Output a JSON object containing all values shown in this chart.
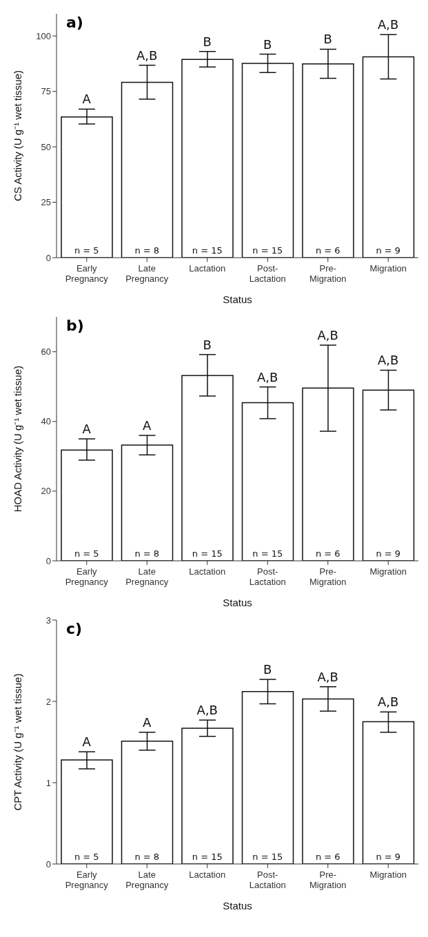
{
  "chart_data": [
    {
      "type": "bar",
      "title": "a)",
      "xlabel": "Status",
      "ylabel": "CS Activity (U g⁻¹ wet tissue)",
      "categories": [
        "Early Pregnancy",
        "Late Pregnancy",
        "Lactation",
        "Post-Lactation",
        "Pre-Migration",
        "Migration"
      ],
      "color": "#ffffff",
      "values": [
        63.5,
        79.1,
        89.4,
        87.6,
        87.4,
        90.6
      ],
      "errors": [
        [
          60.3,
          67
        ],
        [
          71.5,
          86.8
        ],
        [
          86,
          93
        ],
        [
          83.5,
          91.8
        ],
        [
          80.9,
          94
        ],
        [
          80.6,
          100.6
        ]
      ],
      "ylim": [
        0,
        110
      ],
      "yticks": [
        0,
        25,
        50,
        75,
        100
      ],
      "grid": false,
      "legend": false,
      "annotations": [
        {
          "text": "A",
          "x": "Early Pregnancy",
          "y": 67
        },
        {
          "text": "A,B",
          "x": "Late Pregnancy",
          "y": 86.8
        },
        {
          "text": "B",
          "x": "Lactation",
          "y": 93
        },
        {
          "text": "B",
          "x": "Post-Lactation",
          "y": 91.8
        },
        {
          "text": "B",
          "x": "Pre-Migration",
          "y": 94
        },
        {
          "text": "A,B",
          "x": "Migration",
          "y": 100.6
        },
        {
          "text": "n = 5",
          "x": "Early Pregnancy",
          "y": 0
        },
        {
          "text": "n = 8",
          "x": "Late Pregnancy",
          "y": 0
        },
        {
          "text": "n = 15",
          "x": "Lactation",
          "y": 0
        },
        {
          "text": "n = 15",
          "x": "Post-Lactation",
          "y": 0
        },
        {
          "text": "n = 6",
          "x": "Pre-Migration",
          "y": 0
        },
        {
          "text": "n = 9",
          "x": "Migration",
          "y": 0
        }
      ]
    },
    {
      "type": "bar",
      "title": "b)",
      "xlabel": "Status",
      "ylabel": "HOAD Activity (U g⁻¹ wet tissue)",
      "categories": [
        "Early Pregnancy",
        "Late Pregnancy",
        "Lactation",
        "Post-Lactation",
        "Pre-Migration",
        "Migration"
      ],
      "color": "#ffffff",
      "values": [
        31.8,
        33.2,
        53.2,
        45.4,
        49.6,
        49
      ],
      "errors": [
        [
          28.9,
          35
        ],
        [
          30.4,
          36
        ],
        [
          47.3,
          59.2
        ],
        [
          40.8,
          49.9
        ],
        [
          37.2,
          61.9
        ],
        [
          43.3,
          54.7
        ]
      ],
      "ylim": [
        0,
        70
      ],
      "yticks": [
        0,
        20,
        40,
        60
      ],
      "grid": false,
      "legend": false,
      "annotations": [
        {
          "text": "A",
          "x": "Early Pregnancy",
          "y": 35
        },
        {
          "text": "A",
          "x": "Late Pregnancy",
          "y": 36
        },
        {
          "text": "B",
          "x": "Lactation",
          "y": 59.2
        },
        {
          "text": "A,B",
          "x": "Post-Lactation",
          "y": 49.9
        },
        {
          "text": "A,B",
          "x": "Pre-Migration",
          "y": 61.9
        },
        {
          "text": "A,B",
          "x": "Migration",
          "y": 54.7
        },
        {
          "text": "n = 5",
          "x": "Early Pregnancy",
          "y": 0
        },
        {
          "text": "n = 8",
          "x": "Late Pregnancy",
          "y": 0
        },
        {
          "text": "n = 15",
          "x": "Lactation",
          "y": 0
        },
        {
          "text": "n = 15",
          "x": "Post-Lactation",
          "y": 0
        },
        {
          "text": "n = 6",
          "x": "Pre-Migration",
          "y": 0
        },
        {
          "text": "n = 9",
          "x": "Migration",
          "y": 0
        }
      ]
    },
    {
      "type": "bar",
      "title": "c)",
      "xlabel": "Status",
      "ylabel": "CPT Activity (U g⁻¹ wet tissue)",
      "categories": [
        "Early Pregnancy",
        "Late Pregnancy",
        "Lactation",
        "Post-Lactation",
        "Pre-Migration",
        "Migration"
      ],
      "color": "#ffffff",
      "values": [
        1.28,
        1.51,
        1.67,
        2.12,
        2.03,
        1.75
      ],
      "errors": [
        [
          1.17,
          1.38
        ],
        [
          1.4,
          1.62
        ],
        [
          1.57,
          1.77
        ],
        [
          1.97,
          2.27
        ],
        [
          1.88,
          2.18
        ],
        [
          1.62,
          1.87
        ]
      ],
      "ylim": [
        0,
        3
      ],
      "yticks": [
        0,
        1,
        2,
        3
      ],
      "grid": false,
      "legend": false,
      "annotations": [
        {
          "text": "A",
          "x": "Early Pregnancy",
          "y": 1.38
        },
        {
          "text": "A",
          "x": "Late Pregnancy",
          "y": 1.62
        },
        {
          "text": "A,B",
          "x": "Lactation",
          "y": 1.77
        },
        {
          "text": "B",
          "x": "Post-Lactation",
          "y": 2.27
        },
        {
          "text": "A,B",
          "x": "Pre-Migration",
          "y": 2.18
        },
        {
          "text": "A,B",
          "x": "Migration",
          "y": 1.87
        },
        {
          "text": "n = 5",
          "x": "Early Pregnancy",
          "y": 0
        },
        {
          "text": "n = 8",
          "x": "Late Pregnancy",
          "y": 0
        },
        {
          "text": "n = 15",
          "x": "Lactation",
          "y": 0
        },
        {
          "text": "n = 15",
          "x": "Post-Lactation",
          "y": 0
        },
        {
          "text": "n = 6",
          "x": "Pre-Migration",
          "y": 0
        },
        {
          "text": "n = 9",
          "x": "Migration",
          "y": 0
        }
      ]
    }
  ]
}
